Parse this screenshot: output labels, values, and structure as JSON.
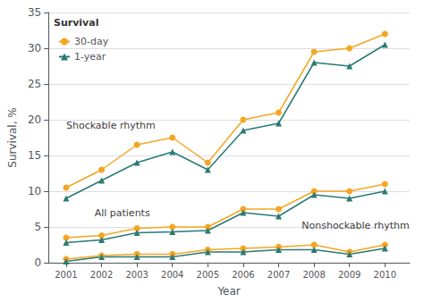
{
  "chart_data": {
    "type": "line",
    "xlabel": "Year",
    "ylabel": "Survival, %",
    "x": [
      2001,
      2002,
      2003,
      2004,
      2005,
      2006,
      2007,
      2008,
      2009,
      2010
    ],
    "xlim": [
      2000.5,
      2010.7
    ],
    "xticks": [
      2001,
      2002,
      2003,
      2004,
      2005,
      2006,
      2007,
      2008,
      2009,
      2010
    ],
    "ylim": [
      0,
      35
    ],
    "yticks": [
      0,
      5,
      10,
      15,
      20,
      25,
      30,
      35
    ],
    "grid": true,
    "legend": "upper left",
    "legend_title": "Survival",
    "series": [
      {
        "name": "30-day",
        "color": "#f5a623",
        "marker": "circle",
        "values": [
          10.5,
          13.0,
          16.5,
          17.5,
          14.0,
          20.0,
          21.0,
          29.5,
          30.0,
          32.0
        ]
      },
      {
        "name": "1-year",
        "color": "#2a7a74",
        "marker": "triangle",
        "values": [
          9.0,
          11.5,
          14.0,
          15.5,
          13.0,
          18.5,
          19.5,
          28.0,
          27.5,
          30.5
        ]
      },
      {
        "name": "30-day",
        "color": "#f5a623",
        "marker": "circle",
        "values": [
          3.5,
          3.8,
          4.8,
          5.0,
          5.0,
          7.5,
          7.5,
          10.0,
          10.0,
          11.0
        ]
      },
      {
        "name": "1-year",
        "color": "#2a7a74",
        "marker": "triangle",
        "values": [
          2.8,
          3.2,
          4.2,
          4.3,
          4.5,
          7.0,
          6.5,
          9.5,
          9.0,
          10.0
        ]
      },
      {
        "name": "30-day",
        "color": "#f5a623",
        "marker": "circle",
        "values": [
          0.5,
          1.0,
          1.2,
          1.2,
          1.8,
          2.0,
          2.2,
          2.5,
          1.5,
          2.5
        ]
      },
      {
        "name": "1-year",
        "color": "#2a7a74",
        "marker": "triangle",
        "values": [
          0.2,
          0.8,
          0.8,
          0.8,
          1.5,
          1.5,
          1.8,
          1.8,
          1.2,
          2.0
        ]
      }
    ],
    "annotations": [
      {
        "text": "Shockable rhythm",
        "x": 2001.0,
        "y": 18.5
      },
      {
        "text": "All patients",
        "x": 2001.8,
        "y": 6.3
      },
      {
        "text": "Nonshockable rhythm",
        "x": 2007.65,
        "y": 4.5
      }
    ]
  }
}
